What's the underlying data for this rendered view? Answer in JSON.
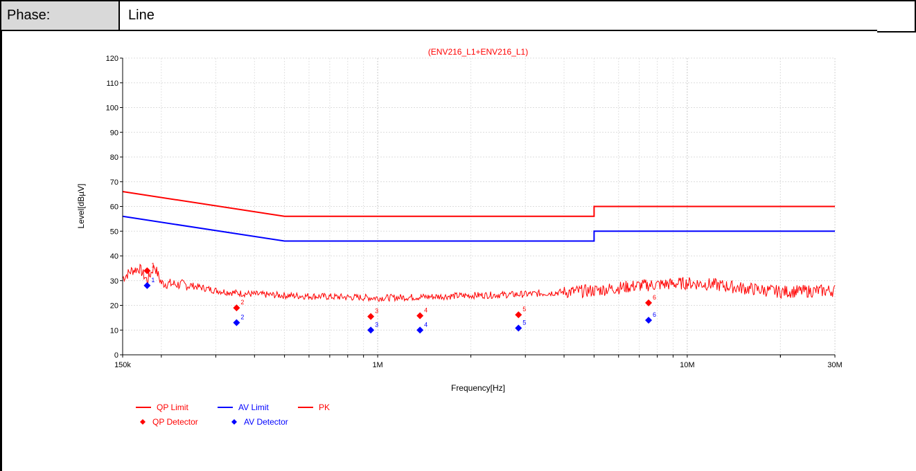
{
  "header": {
    "label": "Phase:",
    "value": "Line"
  },
  "chart_data": {
    "type": "line",
    "title": "(ENV216_L1+ENV216_L1)",
    "xlabel": "Frequency[Hz]",
    "ylabel": "Level[dBµV]",
    "xscale": "log",
    "xlim": [
      150000,
      30000000
    ],
    "ylim": [
      0,
      120
    ],
    "x_tick_labels": [
      {
        "value": 150000,
        "label": "150k"
      },
      {
        "value": 1000000,
        "label": "1M"
      },
      {
        "value": 10000000,
        "label": "10M"
      },
      {
        "value": 30000000,
        "label": "30M"
      }
    ],
    "y_ticks": [
      0,
      10,
      20,
      30,
      40,
      50,
      60,
      70,
      80,
      90,
      100,
      110,
      120
    ],
    "grid": true,
    "series": [
      {
        "name": "QP Limit",
        "color": "#ff0000",
        "points": [
          [
            150000,
            66
          ],
          [
            500000,
            56
          ],
          [
            5000000,
            56
          ],
          [
            5000000,
            60
          ],
          [
            30000000,
            60
          ]
        ]
      },
      {
        "name": "AV Limit",
        "color": "#0000ff",
        "points": [
          [
            150000,
            56
          ],
          [
            500000,
            46
          ],
          [
            5000000,
            46
          ],
          [
            5000000,
            50
          ],
          [
            30000000,
            50
          ]
        ]
      },
      {
        "name": "PK",
        "color": "#ff0000",
        "points": [
          [
            150000,
            31
          ],
          [
            160000,
            34
          ],
          [
            170000,
            35
          ],
          [
            180000,
            30
          ],
          [
            190000,
            36
          ],
          [
            200000,
            29
          ],
          [
            250000,
            28
          ],
          [
            300000,
            26
          ],
          [
            350000,
            25
          ],
          [
            400000,
            24.5
          ],
          [
            500000,
            24
          ],
          [
            700000,
            23.5
          ],
          [
            1000000,
            23
          ],
          [
            1500000,
            23.5
          ],
          [
            2000000,
            24
          ],
          [
            3000000,
            24.5
          ],
          [
            5000000,
            26
          ],
          [
            7000000,
            28
          ],
          [
            10000000,
            29
          ],
          [
            12000000,
            28.5
          ],
          [
            15000000,
            27
          ],
          [
            20000000,
            25.5
          ],
          [
            30000000,
            26
          ]
        ]
      }
    ],
    "markers": [
      {
        "name": "QP Detector",
        "color": "#ff0000",
        "points": [
          {
            "id": "1",
            "x": 180000,
            "y": 34
          },
          {
            "id": "2",
            "x": 350000,
            "y": 19
          },
          {
            "id": "3",
            "x": 950000,
            "y": 15.5
          },
          {
            "id": "4",
            "x": 1370000,
            "y": 15.8
          },
          {
            "id": "5",
            "x": 2850000,
            "y": 16.2
          },
          {
            "id": "6",
            "x": 7500000,
            "y": 21
          }
        ]
      },
      {
        "name": "AV Detector",
        "color": "#0000ff",
        "points": [
          {
            "id": "1",
            "x": 180000,
            "y": 28
          },
          {
            "id": "2",
            "x": 350000,
            "y": 13
          },
          {
            "id": "3",
            "x": 950000,
            "y": 10
          },
          {
            "id": "4",
            "x": 1370000,
            "y": 10
          },
          {
            "id": "5",
            "x": 2850000,
            "y": 10.8
          },
          {
            "id": "6",
            "x": 7500000,
            "y": 14
          }
        ]
      }
    ],
    "legend": [
      {
        "label": "QP Limit",
        "kind": "line",
        "color": "#ff0000"
      },
      {
        "label": "AV Limit",
        "kind": "line",
        "color": "#0000ff"
      },
      {
        "label": "PK",
        "kind": "line",
        "color": "#ff0000"
      },
      {
        "label": "QP Detector",
        "kind": "marker",
        "color": "#ff0000"
      },
      {
        "label": "AV Detector",
        "kind": "marker",
        "color": "#0000ff"
      }
    ],
    "legend_position": "bottom-left"
  }
}
